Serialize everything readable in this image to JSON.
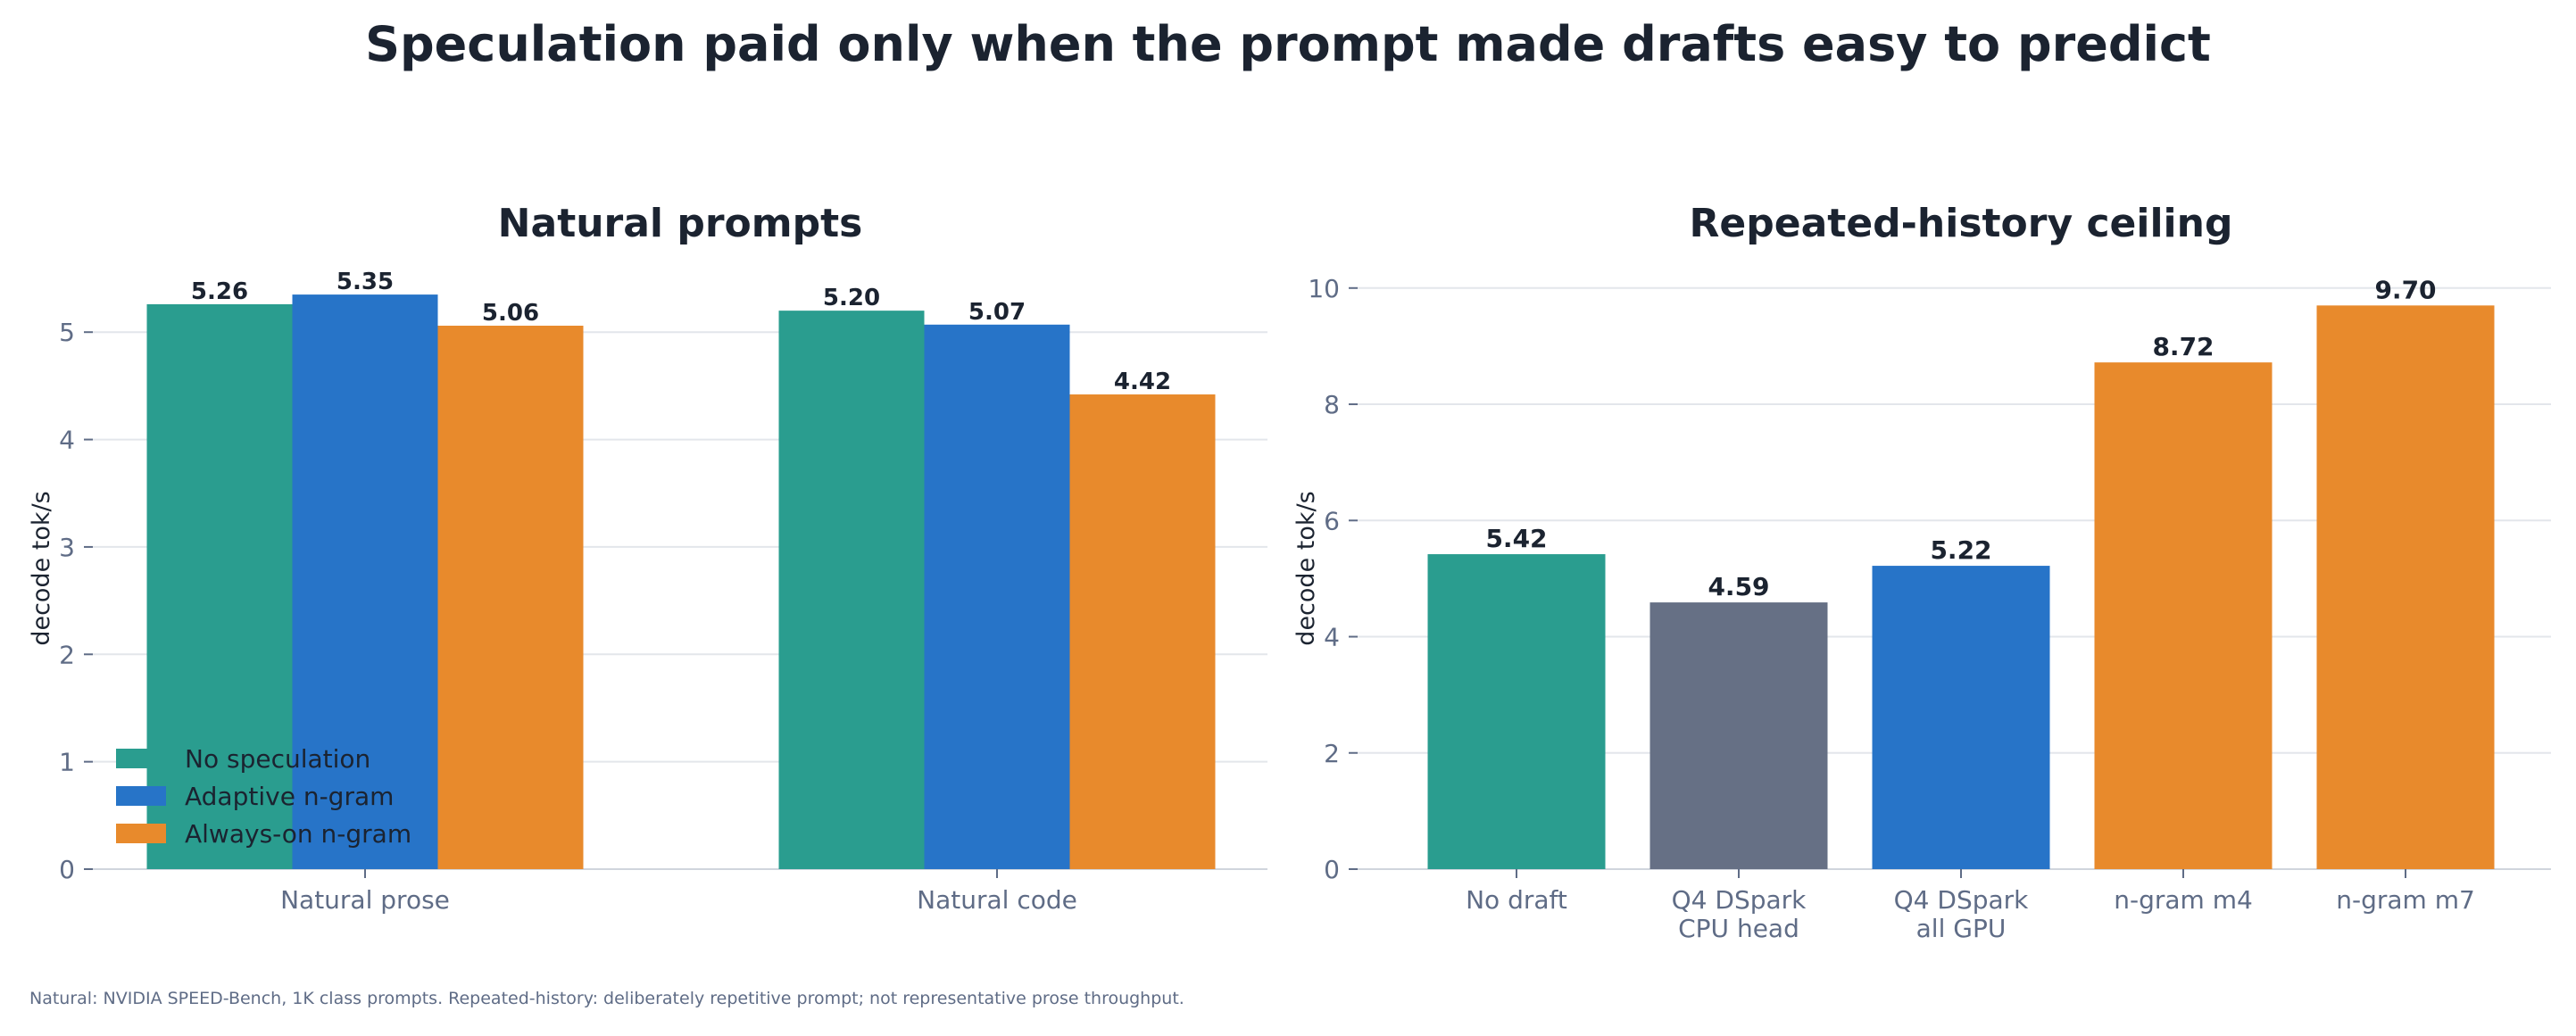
{
  "figure": {
    "title": "Speculation paid only when the prompt made drafts easy to predict",
    "footnote": "Natural: NVIDIA SPEED-Bench, 1K class prompts. Repeated-history: deliberately repetitive prompt; not representative prose throughput."
  },
  "chart_data": [
    {
      "type": "bar",
      "title": "Natural prompts",
      "xlabel": "",
      "ylabel": "decode tok/s",
      "categories": [
        "Natural prose",
        "Natural code"
      ],
      "series": [
        {
          "name": "No speculation",
          "color": "#2a9d8f",
          "values": [
            5.26,
            5.2
          ]
        },
        {
          "name": "Adaptive n-gram",
          "color": "#2774c8",
          "values": [
            5.35,
            5.07
          ]
        },
        {
          "name": "Always-on n-gram",
          "color": "#e88a2c",
          "values": [
            5.06,
            4.42
          ]
        }
      ],
      "value_labels": [
        [
          "5.26",
          "5.20"
        ],
        [
          "5.35",
          "5.07"
        ],
        [
          "5.06",
          "4.42"
        ]
      ],
      "ylim": [
        0,
        5.6
      ],
      "yticks": [
        "0",
        "1",
        "2",
        "3",
        "4",
        "5"
      ],
      "grid": "horizontal",
      "legend": "bottom-left"
    },
    {
      "type": "bar",
      "title": "Repeated-history ceiling",
      "xlabel": "",
      "ylabel": "decode tok/s",
      "categories": [
        [
          "No draft"
        ],
        [
          "Q4 DSpark",
          "CPU head"
        ],
        [
          "Q4 DSpark",
          "all GPU"
        ],
        [
          "n-gram m4"
        ],
        [
          "n-gram m7"
        ]
      ],
      "values": [
        5.42,
        4.59,
        5.22,
        8.72,
        9.7
      ],
      "value_labels": [
        "5.42",
        "4.59",
        "5.22",
        "8.72",
        "9.70"
      ],
      "colors": [
        "#2a9d8f",
        "#667085",
        "#2774c8",
        "#e88a2c",
        "#e88a2c"
      ],
      "ylim": [
        0,
        10.35
      ],
      "yticks": [
        "0",
        "2",
        "4",
        "6",
        "8",
        "10"
      ],
      "grid": "horizontal",
      "legend": "none"
    }
  ]
}
